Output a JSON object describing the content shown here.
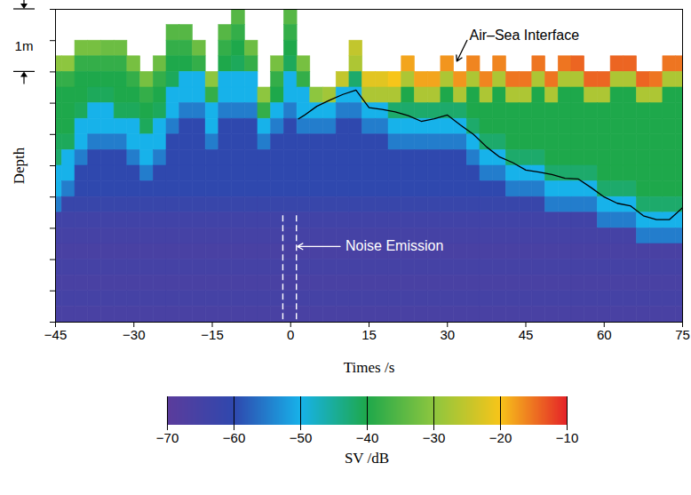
{
  "chart_data": {
    "type": "heatmap",
    "x_label": "Times /s",
    "y_label": "Depth",
    "tick_labels": "x",
    "xlim": [
      -45,
      75
    ],
    "xticks": [
      -45,
      -30,
      -15,
      0,
      15,
      30,
      45,
      60,
      75
    ],
    "ylim": [
      5,
      0
    ],
    "yticks": [
      0,
      0.5,
      1,
      1.5,
      2,
      2.5,
      3,
      3.5,
      4,
      4.5,
      5
    ],
    "x": [
      -45,
      -42.5,
      -40,
      -37.5,
      -35,
      -32.5,
      -30,
      -27.5,
      -25,
      -22.5,
      -20,
      -17.5,
      -15,
      -12.5,
      -10,
      -7.5,
      -5,
      -2.5,
      0,
      2.5,
      5,
      7.5,
      10,
      12.5,
      15,
      17.5,
      20,
      22.5,
      25,
      27.5,
      30,
      32.5,
      35,
      37.5,
      40,
      42.5,
      45,
      47.5,
      50,
      52.5,
      55,
      57.5,
      60,
      62.5,
      65,
      67.5,
      70,
      72.5,
      75
    ],
    "y": [
      0.125,
      0.375,
      0.625,
      0.875,
      1.125,
      1.375,
      1.625,
      1.875,
      2.125,
      2.375,
      2.625,
      2.875,
      3.125,
      3.375,
      3.625,
      3.875,
      4.125,
      4.375,
      4.625,
      4.875
    ],
    "values": [
      [
        null,
        null,
        null,
        -30,
        -38,
        -40,
        -40,
        -40,
        -41,
        -42,
        -50,
        -50,
        -55,
        -64,
        -65,
        -66,
        -65,
        -66,
        -65,
        -66
      ],
      [
        null,
        null,
        null,
        -30,
        -38,
        -40,
        -40,
        -40,
        -41,
        -50,
        -50,
        -55,
        -62,
        -64,
        -65,
        -66,
        -65,
        -66,
        -65,
        -66
      ],
      [
        null,
        null,
        -32,
        -38,
        -40,
        -40,
        -41,
        -50,
        -50,
        -55,
        -60,
        -60,
        -62,
        -64,
        -65,
        -66,
        -65,
        -66,
        -65,
        -66
      ],
      [
        null,
        null,
        -32,
        -38,
        -40,
        -41,
        -50,
        -50,
        -55,
        -60,
        -60,
        -60,
        -62,
        -64,
        -65,
        -66,
        -65,
        -66,
        -65,
        -66
      ],
      [
        null,
        null,
        -33,
        -38,
        -40,
        -41,
        -50,
        -50,
        -55,
        -60,
        -60,
        -60,
        -62,
        -64,
        -65,
        -66,
        -65,
        -66,
        -65,
        -66
      ],
      [
        null,
        null,
        -33,
        -38,
        -40,
        -40,
        -41,
        -50,
        -55,
        -60,
        -60,
        -60,
        -62,
        -64,
        -65,
        -66,
        -65,
        -66,
        -65,
        -66
      ],
      [
        null,
        null,
        null,
        -32,
        -38,
        -40,
        -41,
        -50,
        -50,
        -55,
        -60,
        -60,
        -62,
        -64,
        -65,
        -66,
        -65,
        -66,
        -65,
        -66
      ],
      [
        null,
        null,
        null,
        null,
        -32,
        -38,
        -40,
        -41,
        -50,
        -50,
        -55,
        -60,
        -62,
        -64,
        -65,
        -66,
        -65,
        -66,
        -65,
        -66
      ],
      [
        null,
        null,
        null,
        -33,
        -38,
        -40,
        -41,
        -50,
        -50,
        -55,
        -60,
        -60,
        -62,
        -64,
        -65,
        -66,
        -65,
        -66,
        -65,
        -66
      ],
      [
        null,
        -35,
        -38,
        -40,
        -41,
        -50,
        -50,
        -55,
        -60,
        -60,
        -60,
        -60,
        -62,
        -64,
        -65,
        -66,
        -65,
        -66,
        -65,
        -66
      ],
      [
        null,
        -35,
        -38,
        -40,
        -50,
        -50,
        -55,
        -60,
        -60,
        -60,
        -60,
        -60,
        -62,
        -64,
        -65,
        -66,
        -65,
        -66,
        -65,
        -66
      ],
      [
        null,
        null,
        -33,
        -38,
        -50,
        -50,
        -55,
        -60,
        -60,
        -60,
        -60,
        -60,
        -62,
        -64,
        -65,
        -66,
        -65,
        -66,
        -65,
        -66
      ],
      [
        null,
        null,
        null,
        null,
        -30,
        -38,
        -50,
        -50,
        -55,
        -60,
        -60,
        -60,
        -62,
        -64,
        -65,
        -66,
        -65,
        -66,
        -65,
        -66
      ],
      [
        null,
        -35,
        -38,
        -40,
        -50,
        -50,
        -55,
        -60,
        -60,
        -60,
        -60,
        -60,
        -62,
        -64,
        -65,
        -66,
        -65,
        -66,
        -65,
        -66
      ],
      [
        -35,
        -38,
        -40,
        -41,
        -50,
        -50,
        -55,
        -60,
        -60,
        -60,
        -60,
        -60,
        -62,
        -64,
        -65,
        -66,
        -65,
        -66,
        -65,
        -66
      ],
      [
        null,
        null,
        -33,
        -38,
        -50,
        -50,
        -55,
        -60,
        -60,
        -60,
        -60,
        -60,
        -62,
        -64,
        -65,
        -66,
        -65,
        -66,
        -65,
        -66
      ],
      [
        null,
        null,
        null,
        null,
        null,
        -30,
        -38,
        -50,
        -55,
        -60,
        -60,
        -60,
        -62,
        -64,
        -65,
        -66,
        -65,
        -66,
        -65,
        -66
      ],
      [
        null,
        null,
        null,
        -32,
        -38,
        -40,
        -50,
        -55,
        -60,
        -60,
        -60,
        -60,
        -62,
        -64,
        -65,
        -66,
        -65,
        -66,
        -65,
        -66
      ],
      [
        -35,
        -38,
        -40,
        -41,
        -50,
        -50,
        -55,
        -60,
        -60,
        -60,
        -60,
        -60,
        -62,
        -64,
        -65,
        -66,
        -65,
        -66,
        -65,
        -66
      ],
      [
        null,
        null,
        null,
        -32,
        -38,
        -50,
        -50,
        -55,
        -60,
        -60,
        -60,
        -60,
        -62,
        -64,
        -65,
        -66,
        -65,
        -66,
        -65,
        -66
      ],
      [
        null,
        null,
        null,
        null,
        null,
        -30,
        -50,
        -55,
        -60,
        -60,
        -60,
        -60,
        -62,
        -64,
        -65,
        -66,
        -65,
        -66,
        -65,
        -66
      ],
      [
        null,
        null,
        null,
        null,
        null,
        -28,
        -50,
        -55,
        -60,
        -60,
        -60,
        -60,
        -62,
        -64,
        -65,
        -66,
        -65,
        -66,
        -65,
        -66
      ],
      [
        null,
        null,
        null,
        null,
        -25,
        -50,
        -55,
        -60,
        -60,
        -60,
        -60,
        -60,
        -62,
        -64,
        -65,
        -66,
        -65,
        -66,
        -65,
        -66
      ],
      [
        null,
        null,
        -25,
        -27,
        -42,
        -50,
        -55,
        -60,
        -60,
        -60,
        -60,
        -60,
        -62,
        -64,
        -65,
        -66,
        -65,
        -66,
        -65,
        -66
      ],
      [
        null,
        null,
        null,
        null,
        -22,
        -27,
        -50,
        -55,
        -60,
        -60,
        -60,
        -60,
        -62,
        -64,
        -65,
        -66,
        -65,
        -66,
        -65,
        -66
      ],
      [
        null,
        null,
        null,
        null,
        -22,
        -27,
        -50,
        -55,
        -60,
        -60,
        -60,
        -60,
        -62,
        -64,
        -65,
        -66,
        -65,
        -66,
        -65,
        -66
      ],
      [
        null,
        null,
        null,
        null,
        -20,
        -27,
        -42,
        -50,
        -55,
        -60,
        -60,
        -60,
        -62,
        -64,
        -65,
        -66,
        -65,
        -66,
        -65,
        -66
      ],
      [
        null,
        null,
        null,
        -18,
        -27,
        -40,
        -42,
        -50,
        -55,
        -60,
        -60,
        -60,
        -62,
        -64,
        -65,
        -66,
        -65,
        -66,
        -65,
        -66
      ],
      [
        null,
        null,
        null,
        null,
        -18,
        -27,
        -42,
        -50,
        -55,
        -60,
        -60,
        -60,
        -62,
        -64,
        -65,
        -66,
        -65,
        -66,
        -65,
        -66
      ],
      [
        null,
        null,
        null,
        null,
        -18,
        -27,
        -42,
        -50,
        -55,
        -60,
        -60,
        -60,
        -62,
        -64,
        -65,
        -66,
        -65,
        -66,
        -65,
        -66
      ],
      [
        null,
        null,
        null,
        -17,
        -27,
        -40,
        -42,
        -50,
        -55,
        -60,
        -60,
        -60,
        -62,
        -64,
        -65,
        -66,
        -65,
        -66,
        -65,
        -66
      ],
      [
        null,
        null,
        null,
        null,
        -17,
        -27,
        -42,
        -50,
        -55,
        -60,
        -60,
        -60,
        -62,
        -64,
        -65,
        -66,
        -65,
        -66,
        -65,
        -66
      ],
      [
        null,
        null,
        null,
        -16,
        -27,
        -40,
        -40,
        -42,
        -50,
        -55,
        -60,
        -60,
        -62,
        -64,
        -65,
        -66,
        -65,
        -66,
        -65,
        -66
      ],
      [
        null,
        null,
        null,
        null,
        -16,
        -27,
        -40,
        -40,
        -42,
        -50,
        -55,
        -60,
        -62,
        -64,
        -65,
        -66,
        -65,
        -66,
        -65,
        -66
      ],
      [
        null,
        null,
        null,
        -16,
        -27,
        -40,
        -40,
        -40,
        -42,
        -50,
        -55,
        -60,
        -62,
        -64,
        -65,
        -66,
        -65,
        -66,
        -65,
        -66
      ],
      [
        null,
        null,
        null,
        null,
        -15,
        -27,
        -40,
        -40,
        -40,
        -42,
        -50,
        -55,
        -62,
        -64,
        -65,
        -66,
        -65,
        -66,
        -65,
        -66
      ],
      [
        null,
        null,
        null,
        null,
        -15,
        -27,
        -40,
        -40,
        -40,
        -42,
        -50,
        -55,
        -62,
        -64,
        -65,
        -66,
        -65,
        -66,
        -65,
        -66
      ],
      [
        null,
        null,
        null,
        -15,
        -27,
        -40,
        -40,
        -40,
        -40,
        -42,
        -50,
        -55,
        -62,
        -64,
        -65,
        -66,
        -65,
        -66,
        -65,
        -66
      ],
      [
        null,
        null,
        null,
        null,
        -15,
        -27,
        -40,
        -40,
        -40,
        -40,
        -42,
        -50,
        -55,
        -64,
        -65,
        -66,
        -65,
        -66,
        -65,
        -66
      ],
      [
        null,
        null,
        null,
        -15,
        -27,
        -40,
        -40,
        -40,
        -40,
        -40,
        -42,
        -50,
        -55,
        -64,
        -65,
        -66,
        -65,
        -66,
        -65,
        -66
      ],
      [
        null,
        null,
        null,
        -14,
        -27,
        -40,
        -40,
        -40,
        -40,
        -40,
        -42,
        -50,
        -55,
        -64,
        -65,
        -66,
        -65,
        -66,
        -65,
        -66
      ],
      [
        null,
        null,
        null,
        null,
        -14,
        -27,
        -40,
        -40,
        -40,
        -40,
        -42,
        -50,
        -55,
        -64,
        -65,
        -66,
        -65,
        -66,
        -65,
        -66
      ],
      [
        null,
        null,
        null,
        null,
        -14,
        -27,
        -40,
        -40,
        -40,
        -40,
        -40,
        -42,
        -50,
        -55,
        -65,
        -66,
        -65,
        -66,
        -65,
        -66
      ],
      [
        null,
        null,
        null,
        -14,
        -27,
        -40,
        -40,
        -40,
        -40,
        -40,
        -40,
        -42,
        -50,
        -55,
        -65,
        -66,
        -65,
        -66,
        -65,
        -66
      ],
      [
        null,
        null,
        null,
        -14,
        -27,
        -40,
        -40,
        -40,
        -40,
        -40,
        -40,
        -42,
        -50,
        -55,
        -65,
        -66,
        -65,
        -66,
        -65,
        -66
      ],
      [
        null,
        null,
        null,
        null,
        -14,
        -27,
        -40,
        -40,
        -40,
        -40,
        -40,
        -40,
        -42,
        -50,
        -55,
        -66,
        -65,
        -66,
        -65,
        -66
      ],
      [
        null,
        null,
        null,
        null,
        -15,
        -27,
        -40,
        -40,
        -40,
        -40,
        -40,
        -40,
        -42,
        -50,
        -55,
        -66,
        -65,
        -66,
        -65,
        -66
      ],
      [
        null,
        null,
        null,
        -15,
        -27,
        -40,
        -40,
        -40,
        -40,
        -40,
        -40,
        -40,
        -42,
        -50,
        -55,
        -66,
        -65,
        -66,
        -65,
        -66
      ],
      [
        null,
        null,
        null,
        -15,
        -27,
        -40,
        -40,
        -40,
        -40,
        -40,
        -40,
        -40,
        -42,
        -50,
        -55,
        -66,
        -65,
        -66,
        -65,
        -66
      ]
    ],
    "colorbar": {
      "label": "SV /dB",
      "range": [
        -70,
        -10
      ],
      "ticks": [
        -70,
        -60,
        -50,
        -40,
        -30,
        -20,
        -10
      ],
      "colors": [
        "#5b3c9c",
        "#2f48ae",
        "#17b2ea",
        "#1ea84b",
        "#8dc63f",
        "#f7c51a",
        "#e52528"
      ]
    },
    "boundary_line": {
      "color": "#000000",
      "x": [
        1.5,
        2.5,
        5,
        7.5,
        10,
        12.5,
        15,
        17.5,
        20,
        22.5,
        25,
        27.5,
        30,
        32.5,
        35,
        37.5,
        40,
        42.5,
        45,
        47.5,
        50,
        52.5,
        55,
        57.5,
        60,
        62.5,
        65,
        67.5,
        70,
        72.5,
        75
      ],
      "y": [
        1.75,
        1.7,
        1.55,
        1.45,
        1.36,
        1.29,
        1.57,
        1.6,
        1.64,
        1.7,
        1.79,
        1.75,
        1.69,
        1.85,
        2.0,
        2.2,
        2.36,
        2.45,
        2.57,
        2.6,
        2.64,
        2.7,
        2.71,
        2.85,
        3.0,
        3.1,
        3.14,
        3.3,
        3.36,
        3.36,
        3.17
      ]
    },
    "noise_lines": {
      "x": [
        -1.5,
        1.1
      ],
      "y": [
        3.3,
        5
      ]
    },
    "scale_bar": {
      "label": "1m",
      "value": 1
    },
    "annotations": [
      {
        "text": "Air–Sea Interface",
        "x": 34.2,
        "y": 0.42,
        "arrow_to": [
          31.8,
          0.83
        ],
        "color": "#000000"
      },
      {
        "text": "Noise Emission",
        "x": 10.5,
        "y": 3.79,
        "arrow_to": [
          1.3,
          3.79
        ],
        "color": "#ffffff"
      }
    ]
  }
}
